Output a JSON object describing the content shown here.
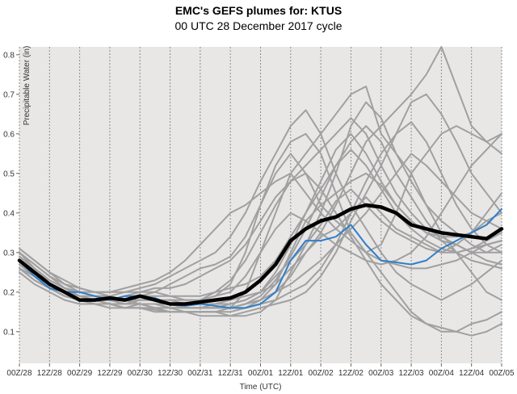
{
  "header": {
    "title": "EMC's GEFS plumes for: KTUS",
    "subtitle": "00 UTC 28 December 2017 cycle"
  },
  "colors": {
    "background": "#e9e6e6",
    "members": "#a0a0a0",
    "mean": "#000000",
    "control": "#2f7fc8",
    "grid": "#8c8c8c"
  },
  "chart_data": {
    "type": "line",
    "title": "EMC's GEFS plumes for: KTUS",
    "subtitle": "00 UTC 28 December 2017 cycle",
    "xlabel": "Time (UTC)",
    "ylabel": "Precipitable Water (in)",
    "ylim": [
      0.02,
      0.82
    ],
    "yticks": [
      0.1,
      0.2,
      0.3,
      0.4,
      0.5,
      0.6,
      0.7,
      0.8
    ],
    "ytick_labels": [
      "0.1",
      "0.2",
      "0.3",
      "0.4",
      "0.5",
      "0.6",
      "0.7",
      "0.8"
    ],
    "xlim": [
      0,
      192
    ],
    "x_units": "forecast hour",
    "xtick_hours": [
      0,
      12,
      24,
      36,
      48,
      60,
      72,
      84,
      96,
      108,
      120,
      132,
      144,
      156,
      168,
      180,
      192
    ],
    "xtick_labels": [
      "00Z/28",
      "12Z/28",
      "00Z/29",
      "12Z/29",
      "00Z/30",
      "12Z/30",
      "00Z/31",
      "12Z/31",
      "00Z/01",
      "12Z/01",
      "00Z/02",
      "12Z/02",
      "00Z/03",
      "12Z/03",
      "00Z/04",
      "12Z/04",
      "00Z/05"
    ],
    "grid": "vertical dotted",
    "legend": "none",
    "x": [
      0,
      6,
      12,
      18,
      24,
      30,
      36,
      42,
      48,
      54,
      60,
      66,
      72,
      78,
      84,
      90,
      96,
      102,
      108,
      114,
      120,
      126,
      132,
      138,
      144,
      150,
      156,
      162,
      168,
      174,
      180,
      186,
      192
    ],
    "series": [
      {
        "role": "mean",
        "values": [
          0.28,
          0.25,
          0.22,
          0.2,
          0.18,
          0.18,
          0.185,
          0.18,
          0.19,
          0.18,
          0.17,
          0.17,
          0.175,
          0.18,
          0.185,
          0.2,
          0.23,
          0.27,
          0.33,
          0.36,
          0.38,
          0.39,
          0.41,
          0.42,
          0.415,
          0.4,
          0.37,
          0.36,
          0.35,
          0.345,
          0.34,
          0.335,
          0.36
        ]
      },
      {
        "role": "control",
        "values": [
          0.28,
          0.24,
          0.21,
          0.2,
          0.2,
          0.19,
          0.18,
          0.19,
          0.19,
          0.185,
          0.17,
          0.165,
          0.17,
          0.165,
          0.16,
          0.16,
          0.17,
          0.2,
          0.28,
          0.33,
          0.33,
          0.34,
          0.37,
          0.32,
          0.28,
          0.275,
          0.27,
          0.28,
          0.31,
          0.33,
          0.35,
          0.37,
          0.41
        ]
      },
      {
        "role": "member",
        "values": [
          0.27,
          0.24,
          0.21,
          0.19,
          0.18,
          0.17,
          0.17,
          0.16,
          0.16,
          0.155,
          0.15,
          0.15,
          0.15,
          0.15,
          0.16,
          0.2,
          0.3,
          0.4,
          0.5,
          0.55,
          0.6,
          0.65,
          0.7,
          0.72,
          0.6,
          0.55,
          0.5,
          0.42,
          0.35,
          0.3,
          0.25,
          0.2,
          0.18
        ]
      },
      {
        "role": "member",
        "values": [
          0.3,
          0.27,
          0.24,
          0.22,
          0.2,
          0.2,
          0.19,
          0.18,
          0.19,
          0.2,
          0.22,
          0.24,
          0.26,
          0.27,
          0.29,
          0.34,
          0.42,
          0.52,
          0.58,
          0.6,
          0.55,
          0.45,
          0.35,
          0.3,
          0.32,
          0.4,
          0.5,
          0.55,
          0.6,
          0.62,
          0.6,
          0.58,
          0.55
        ]
      },
      {
        "role": "member",
        "values": [
          0.26,
          0.23,
          0.21,
          0.19,
          0.18,
          0.18,
          0.17,
          0.16,
          0.17,
          0.16,
          0.16,
          0.15,
          0.15,
          0.15,
          0.14,
          0.14,
          0.15,
          0.18,
          0.25,
          0.32,
          0.4,
          0.5,
          0.62,
          0.68,
          0.64,
          0.55,
          0.48,
          0.42,
          0.38,
          0.35,
          0.32,
          0.3,
          0.3
        ]
      },
      {
        "role": "member",
        "values": [
          0.29,
          0.26,
          0.23,
          0.21,
          0.19,
          0.18,
          0.18,
          0.19,
          0.2,
          0.2,
          0.19,
          0.18,
          0.18,
          0.19,
          0.22,
          0.3,
          0.42,
          0.5,
          0.55,
          0.5,
          0.42,
          0.38,
          0.35,
          0.3,
          0.25,
          0.2,
          0.15,
          0.12,
          0.1,
          0.1,
          0.12,
          0.13,
          0.15
        ]
      },
      {
        "role": "member",
        "values": [
          0.28,
          0.25,
          0.22,
          0.2,
          0.19,
          0.19,
          0.18,
          0.17,
          0.17,
          0.17,
          0.17,
          0.16,
          0.16,
          0.17,
          0.18,
          0.19,
          0.2,
          0.22,
          0.26,
          0.3,
          0.35,
          0.42,
          0.5,
          0.58,
          0.62,
          0.66,
          0.7,
          0.75,
          0.82,
          0.72,
          0.62,
          0.58,
          0.6
        ]
      },
      {
        "role": "member",
        "values": [
          0.25,
          0.22,
          0.2,
          0.18,
          0.17,
          0.17,
          0.16,
          0.16,
          0.16,
          0.15,
          0.15,
          0.15,
          0.14,
          0.14,
          0.14,
          0.15,
          0.16,
          0.17,
          0.18,
          0.2,
          0.24,
          0.3,
          0.38,
          0.45,
          0.52,
          0.6,
          0.68,
          0.7,
          0.65,
          0.58,
          0.5,
          0.45,
          0.4
        ]
      },
      {
        "role": "member",
        "values": [
          0.3,
          0.27,
          0.24,
          0.21,
          0.2,
          0.19,
          0.19,
          0.2,
          0.21,
          0.22,
          0.24,
          0.26,
          0.28,
          0.3,
          0.34,
          0.4,
          0.48,
          0.55,
          0.62,
          0.66,
          0.6,
          0.5,
          0.42,
          0.36,
          0.3,
          0.25,
          0.22,
          0.2,
          0.18,
          0.2,
          0.22,
          0.25,
          0.28
        ]
      },
      {
        "role": "member",
        "values": [
          0.27,
          0.24,
          0.22,
          0.2,
          0.18,
          0.18,
          0.17,
          0.17,
          0.17,
          0.16,
          0.16,
          0.16,
          0.16,
          0.16,
          0.16,
          0.17,
          0.18,
          0.22,
          0.3,
          0.38,
          0.42,
          0.45,
          0.48,
          0.5,
          0.47,
          0.42,
          0.38,
          0.35,
          0.33,
          0.32,
          0.3,
          0.3,
          0.32
        ]
      },
      {
        "role": "member",
        "values": [
          0.26,
          0.24,
          0.21,
          0.19,
          0.18,
          0.17,
          0.17,
          0.16,
          0.16,
          0.16,
          0.15,
          0.15,
          0.15,
          0.15,
          0.15,
          0.16,
          0.18,
          0.2,
          0.22,
          0.25,
          0.28,
          0.32,
          0.36,
          0.4,
          0.45,
          0.5,
          0.55,
          0.52,
          0.48,
          0.44,
          0.4,
          0.38,
          0.36
        ]
      },
      {
        "role": "member",
        "values": [
          0.31,
          0.28,
          0.25,
          0.23,
          0.21,
          0.2,
          0.2,
          0.21,
          0.22,
          0.23,
          0.25,
          0.28,
          0.32,
          0.36,
          0.4,
          0.42,
          0.45,
          0.48,
          0.5,
          0.45,
          0.4,
          0.36,
          0.33,
          0.3,
          0.28,
          0.27,
          0.26,
          0.26,
          0.27,
          0.28,
          0.3,
          0.32,
          0.33
        ]
      },
      {
        "role": "member",
        "values": [
          0.28,
          0.25,
          0.23,
          0.21,
          0.2,
          0.19,
          0.18,
          0.18,
          0.18,
          0.18,
          0.17,
          0.17,
          0.17,
          0.17,
          0.17,
          0.18,
          0.2,
          0.25,
          0.32,
          0.4,
          0.48,
          0.56,
          0.6,
          0.55,
          0.48,
          0.42,
          0.38,
          0.35,
          0.34,
          0.34,
          0.35,
          0.4,
          0.45
        ]
      },
      {
        "role": "member",
        "values": [
          0.29,
          0.26,
          0.23,
          0.21,
          0.19,
          0.18,
          0.18,
          0.17,
          0.18,
          0.18,
          0.18,
          0.17,
          0.18,
          0.2,
          0.23,
          0.28,
          0.35,
          0.42,
          0.48,
          0.5,
          0.46,
          0.4,
          0.34,
          0.28,
          0.22,
          0.18,
          0.14,
          0.12,
          0.11,
          0.1,
          0.09,
          0.1,
          0.12
        ]
      },
      {
        "role": "member",
        "values": [
          0.27,
          0.25,
          0.22,
          0.2,
          0.19,
          0.18,
          0.18,
          0.18,
          0.17,
          0.17,
          0.17,
          0.16,
          0.16,
          0.16,
          0.16,
          0.17,
          0.18,
          0.2,
          0.24,
          0.3,
          0.34,
          0.36,
          0.4,
          0.44,
          0.4,
          0.36,
          0.34,
          0.32,
          0.3,
          0.32,
          0.35,
          0.38,
          0.4
        ]
      },
      {
        "role": "member",
        "values": [
          0.28,
          0.25,
          0.22,
          0.2,
          0.19,
          0.18,
          0.17,
          0.17,
          0.17,
          0.17,
          0.16,
          0.16,
          0.16,
          0.16,
          0.17,
          0.18,
          0.2,
          0.24,
          0.28,
          0.32,
          0.37,
          0.43,
          0.46,
          0.42,
          0.38,
          0.35,
          0.33,
          0.31,
          0.3,
          0.3,
          0.31,
          0.33,
          0.35
        ]
      },
      {
        "role": "member",
        "values": [
          0.3,
          0.26,
          0.23,
          0.21,
          0.2,
          0.19,
          0.19,
          0.18,
          0.19,
          0.19,
          0.19,
          0.19,
          0.19,
          0.2,
          0.21,
          0.22,
          0.24,
          0.28,
          0.34,
          0.4,
          0.46,
          0.52,
          0.56,
          0.52,
          0.46,
          0.4,
          0.36,
          0.33,
          0.31,
          0.3,
          0.31,
          0.32,
          0.33
        ]
      },
      {
        "role": "member",
        "values": [
          0.26,
          0.23,
          0.21,
          0.19,
          0.18,
          0.17,
          0.17,
          0.16,
          0.16,
          0.16,
          0.16,
          0.16,
          0.16,
          0.16,
          0.16,
          0.16,
          0.17,
          0.18,
          0.2,
          0.22,
          0.26,
          0.32,
          0.4,
          0.48,
          0.55,
          0.6,
          0.63,
          0.58,
          0.5,
          0.42,
          0.36,
          0.32,
          0.3
        ]
      },
      {
        "role": "member",
        "values": [
          0.29,
          0.26,
          0.23,
          0.21,
          0.2,
          0.19,
          0.18,
          0.18,
          0.18,
          0.18,
          0.18,
          0.18,
          0.18,
          0.19,
          0.2,
          0.24,
          0.3,
          0.36,
          0.4,
          0.38,
          0.35,
          0.32,
          0.3,
          0.28,
          0.27,
          0.28,
          0.3,
          0.34,
          0.4,
          0.46,
          0.52,
          0.56,
          0.6
        ]
      },
      {
        "role": "member",
        "values": [
          0.27,
          0.24,
          0.22,
          0.2,
          0.18,
          0.18,
          0.17,
          0.17,
          0.17,
          0.17,
          0.16,
          0.16,
          0.16,
          0.16,
          0.16,
          0.17,
          0.19,
          0.23,
          0.29,
          0.36,
          0.44,
          0.52,
          0.58,
          0.62,
          0.58,
          0.5,
          0.44,
          0.38,
          0.33,
          0.3,
          0.28,
          0.27,
          0.26
        ]
      },
      {
        "role": "member",
        "values": [
          0.31,
          0.28,
          0.25,
          0.22,
          0.21,
          0.2,
          0.2,
          0.2,
          0.2,
          0.21,
          0.21,
          0.22,
          0.24,
          0.26,
          0.28,
          0.32,
          0.38,
          0.44,
          0.48,
          0.52,
          0.56,
          0.6,
          0.64,
          0.6,
          0.52,
          0.45,
          0.4,
          0.36,
          0.34,
          0.32,
          0.3,
          0.28,
          0.27
        ]
      }
    ]
  }
}
